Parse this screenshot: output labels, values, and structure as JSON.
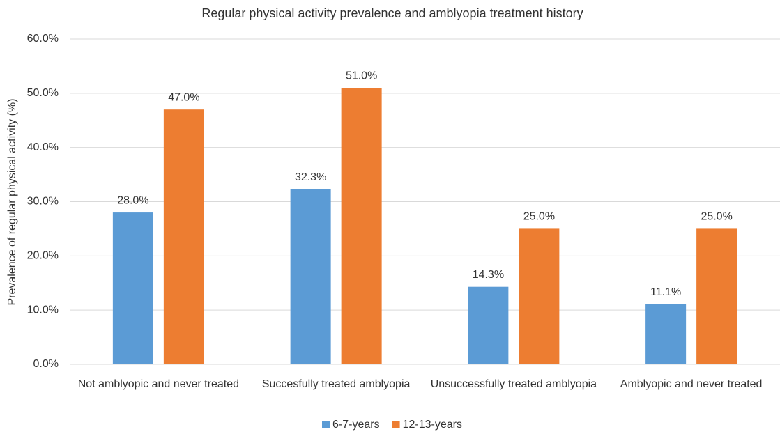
{
  "chart_data": {
    "type": "bar",
    "title": "Regular physical activity prevalence and amblyopia treatment history",
    "y_label": "Prevalence of regular physical activity (%)",
    "categories": [
      "Not amblyopic and never treated",
      "Succesfully treated amblyopia",
      "Unsuccessfully treated amblyopia",
      "Amblyopic and never treated"
    ],
    "series": [
      {
        "name": "6-7-years",
        "color": "#5b9bd5",
        "values": [
          28.0,
          32.3,
          14.3,
          11.1
        ],
        "value_labels": [
          "28.0%",
          "32.3%",
          "14.3%",
          "11.1%"
        ]
      },
      {
        "name": "12-13-years",
        "color": "#ed7d31",
        "values": [
          47.0,
          51.0,
          25.0,
          25.0
        ],
        "value_labels": [
          "47.0%",
          "51.0%",
          "25.0%",
          "25.0%"
        ]
      }
    ],
    "ylim": [
      0,
      60
    ],
    "yticks": [
      {
        "value": 0,
        "label": "0.0%"
      },
      {
        "value": 10,
        "label": "10.0%"
      },
      {
        "value": 20,
        "label": "20.0%"
      },
      {
        "value": 30,
        "label": "30.0%"
      },
      {
        "value": 40,
        "label": "40.0%"
      },
      {
        "value": 50,
        "label": "50.0%"
      },
      {
        "value": 60,
        "label": "60.0%"
      }
    ],
    "grid": true,
    "legend": "bottom"
  }
}
